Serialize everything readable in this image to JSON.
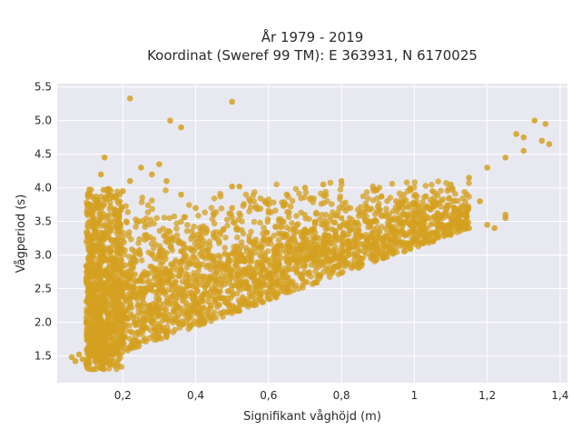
{
  "chart_data": {
    "type": "scatter",
    "title_lines": [
      "År 1979 - 2019",
      "Koordinat (Sweref 99 TM): E 363931, N 6170025"
    ],
    "xlabel": "Signifikant våghöjd (m)",
    "ylabel": "Vågperiod (s)",
    "xlim": [
      0.02,
      1.42
    ],
    "ylim": [
      1.1,
      5.55
    ],
    "x_ticks": [
      0.2,
      0.4,
      0.6,
      0.8,
      1.0,
      1.2,
      1.4
    ],
    "x_tick_labels": [
      "0,2",
      "0,4",
      "0,6",
      "0,8",
      "1",
      "1,2",
      "1,4"
    ],
    "y_ticks": [
      1.5,
      2.0,
      2.5,
      3.0,
      3.5,
      4.0,
      4.5,
      5.0,
      5.5
    ],
    "y_tick_labels": [
      "1.5",
      "2.0",
      "2.5",
      "3.0",
      "3.5",
      "4.0",
      "4.5",
      "5.0",
      "5.5"
    ],
    "grid": true,
    "marker_color": "#D4A020",
    "background_color": "#E8E8F0",
    "series": [
      {
        "points": [
          [
            0.06,
            1.48
          ],
          [
            0.07,
            1.42
          ],
          [
            0.08,
            1.52
          ],
          [
            0.09,
            1.45
          ],
          [
            0.1,
            1.38
          ],
          [
            0.11,
            1.55
          ],
          [
            0.12,
            1.62
          ],
          [
            0.13,
            1.75
          ],
          [
            0.14,
            1.85
          ],
          [
            0.15,
            1.95
          ],
          [
            0.16,
            2.05
          ],
          [
            0.18,
            2.15
          ],
          [
            0.2,
            2.25
          ],
          [
            0.22,
            2.35
          ],
          [
            0.25,
            2.45
          ],
          [
            0.28,
            2.55
          ],
          [
            0.3,
            2.6
          ],
          [
            0.33,
            2.7
          ],
          [
            0.36,
            2.78
          ],
          [
            0.4,
            2.85
          ],
          [
            0.44,
            2.95
          ],
          [
            0.48,
            3.02
          ],
          [
            0.52,
            3.08
          ],
          [
            0.56,
            3.15
          ],
          [
            0.6,
            3.22
          ],
          [
            0.65,
            3.3
          ],
          [
            0.7,
            3.38
          ],
          [
            0.75,
            3.45
          ],
          [
            0.8,
            3.55
          ],
          [
            0.85,
            3.62
          ],
          [
            0.9,
            3.72
          ],
          [
            0.95,
            3.8
          ],
          [
            1.0,
            3.88
          ],
          [
            1.05,
            3.95
          ],
          [
            1.1,
            4.05
          ],
          [
            1.15,
            4.15
          ],
          [
            1.2,
            4.3
          ],
          [
            1.25,
            4.45
          ],
          [
            1.3,
            4.55
          ],
          [
            1.35,
            4.7
          ],
          [
            0.1,
            2.6
          ],
          [
            0.11,
            3.0
          ],
          [
            0.12,
            3.4
          ],
          [
            0.13,
            3.8
          ],
          [
            0.14,
            4.2
          ],
          [
            0.15,
            4.45
          ],
          [
            0.16,
            3.9
          ],
          [
            0.18,
            3.6
          ],
          [
            0.2,
            3.95
          ],
          [
            0.22,
            4.1
          ],
          [
            0.25,
            4.3
          ],
          [
            0.28,
            4.2
          ],
          [
            0.3,
            4.35
          ],
          [
            0.32,
            4.1
          ],
          [
            0.36,
            3.9
          ],
          [
            0.4,
            3.7
          ],
          [
            0.45,
            3.6
          ],
          [
            0.5,
            3.7
          ],
          [
            0.55,
            3.8
          ],
          [
            0.6,
            3.75
          ],
          [
            0.65,
            3.9
          ],
          [
            0.7,
            4.0
          ],
          [
            0.75,
            4.05
          ],
          [
            0.8,
            4.1
          ],
          [
            0.22,
            5.33
          ],
          [
            0.33,
            5.0
          ],
          [
            0.36,
            4.9
          ],
          [
            0.5,
            5.28
          ],
          [
            0.5,
            4.02
          ],
          [
            0.52,
            4.02
          ],
          [
            0.9,
            3.1
          ],
          [
            0.95,
            3.2
          ],
          [
            1.0,
            3.25
          ],
          [
            1.05,
            3.2
          ],
          [
            1.1,
            3.3
          ],
          [
            1.15,
            3.4
          ],
          [
            1.2,
            3.45
          ],
          [
            1.25,
            3.55
          ],
          [
            1.22,
            3.4
          ],
          [
            1.25,
            3.6
          ],
          [
            1.28,
            4.8
          ],
          [
            1.33,
            5.0
          ],
          [
            1.36,
            4.95
          ],
          [
            1.37,
            4.65
          ],
          [
            1.3,
            4.75
          ],
          [
            1.18,
            3.8
          ],
          [
            0.12,
            1.3
          ],
          [
            0.14,
            1.32
          ],
          [
            0.16,
            1.4
          ],
          [
            0.18,
            1.55
          ],
          [
            0.2,
            1.7
          ],
          [
            0.24,
            1.85
          ],
          [
            0.28,
            2.0
          ],
          [
            0.34,
            2.15
          ],
          [
            0.4,
            2.3
          ],
          [
            0.46,
            2.45
          ],
          [
            0.52,
            2.55
          ],
          [
            0.58,
            2.65
          ],
          [
            0.64,
            2.75
          ],
          [
            0.7,
            2.85
          ],
          [
            0.76,
            2.95
          ],
          [
            0.82,
            3.0
          ]
        ]
      }
    ]
  }
}
